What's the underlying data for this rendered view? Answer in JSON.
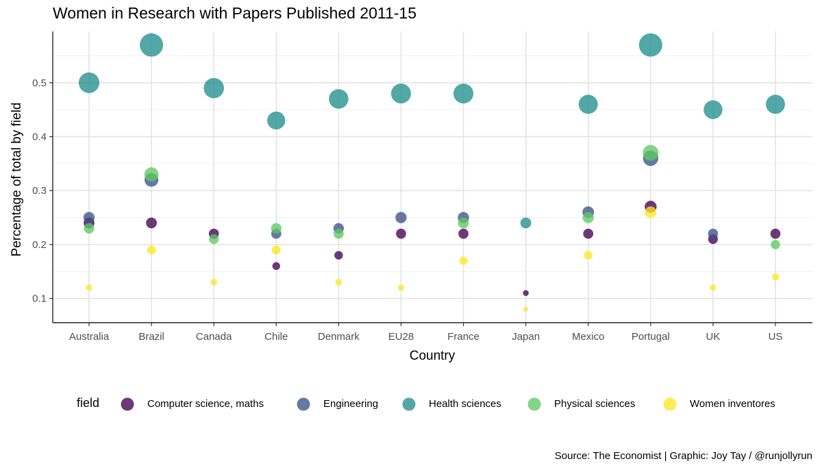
{
  "title": "Women in Research with Papers Published 2011-15",
  "caption": "Source: The Economist | Graphic: Joy Tay / @runjollyrun",
  "legend_title": "field",
  "chart_data": {
    "type": "scatter",
    "title": "Women in Research with Papers Published 2011-15",
    "xlabel": "Country",
    "ylabel": "Percentage of total by field",
    "categories": [
      "Australia",
      "Brazil",
      "Canada",
      "Chile",
      "Denmark",
      "EU28",
      "France",
      "Japan",
      "Mexico",
      "Portugal",
      "UK",
      "US"
    ],
    "yticks": [
      0.1,
      0.2,
      0.3,
      0.4,
      0.5
    ],
    "ylim": [
      0.055,
      0.595
    ],
    "grid": true,
    "legend_position": "bottom",
    "point_size_encodes": "value",
    "series": [
      {
        "name": "Computer science, maths",
        "color": "#440154",
        "values": [
          0.24,
          0.24,
          0.22,
          0.16,
          0.18,
          0.22,
          0.22,
          0.11,
          0.22,
          0.27,
          0.21,
          0.22
        ]
      },
      {
        "name": "Engineering",
        "color": "#3b528b",
        "values": [
          0.25,
          0.32,
          null,
          0.22,
          0.23,
          0.25,
          0.25,
          null,
          0.26,
          0.36,
          0.22,
          null
        ]
      },
      {
        "name": "Health sciences",
        "color": "#21908d",
        "values": [
          0.5,
          0.57,
          0.49,
          0.43,
          0.47,
          0.48,
          0.48,
          0.24,
          0.46,
          0.57,
          0.45,
          0.46
        ]
      },
      {
        "name": "Physical sciences",
        "color": "#5dc963",
        "values": [
          0.23,
          0.33,
          0.21,
          0.23,
          0.22,
          null,
          0.24,
          null,
          0.25,
          0.37,
          null,
          0.2
        ]
      },
      {
        "name": "Women inventores",
        "color": "#fde725",
        "values": [
          0.12,
          0.19,
          0.13,
          0.19,
          0.13,
          0.12,
          0.17,
          0.08,
          0.18,
          0.26,
          0.12,
          0.14
        ]
      }
    ]
  }
}
